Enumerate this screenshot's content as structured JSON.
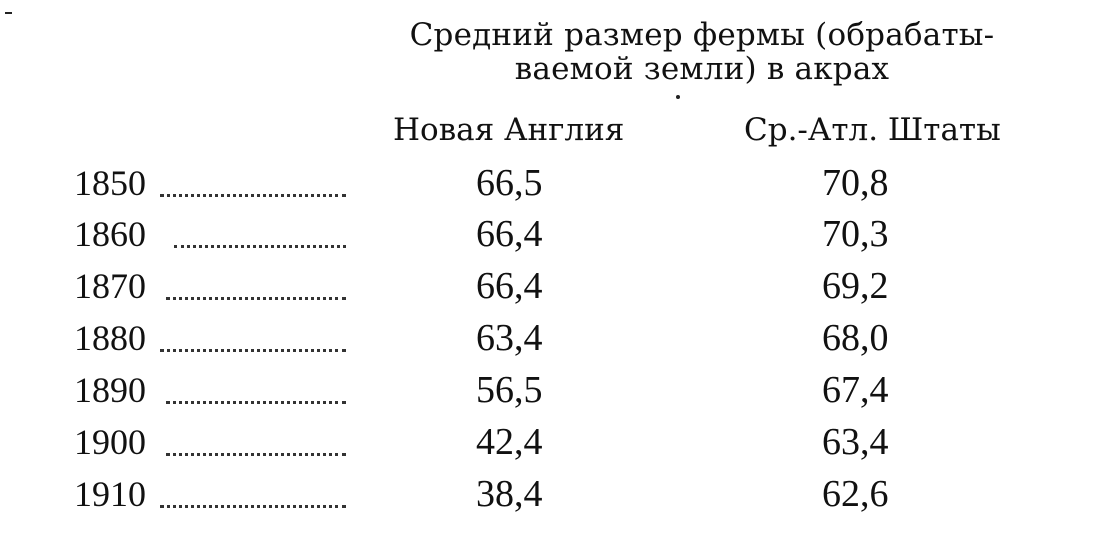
{
  "caption": {
    "line1": "Средний размер фермы (обрабаты-",
    "line2": "ваемой земли) в акрах"
  },
  "columns": {
    "new_england": "Новая Англия",
    "mid_atlantic": "Ср.-Атл. Штаты"
  },
  "rows": [
    {
      "year": "1850",
      "new_england": "66,5",
      "mid_atlantic": "70,8"
    },
    {
      "year": "1860",
      "new_england": "66,4",
      "mid_atlantic": "70,3"
    },
    {
      "year": "1870",
      "new_england": "66,4",
      "mid_atlantic": "69,2"
    },
    {
      "year": "1880",
      "new_england": "63,4",
      "mid_atlantic": "68,0"
    },
    {
      "year": "1890",
      "new_england": "56,5",
      "mid_atlantic": "67,4"
    },
    {
      "year": "1900",
      "new_england": "42,4",
      "mid_atlantic": "63,4"
    },
    {
      "year": "1910",
      "new_england": "38,4",
      "mid_atlantic": "62,6"
    }
  ]
}
